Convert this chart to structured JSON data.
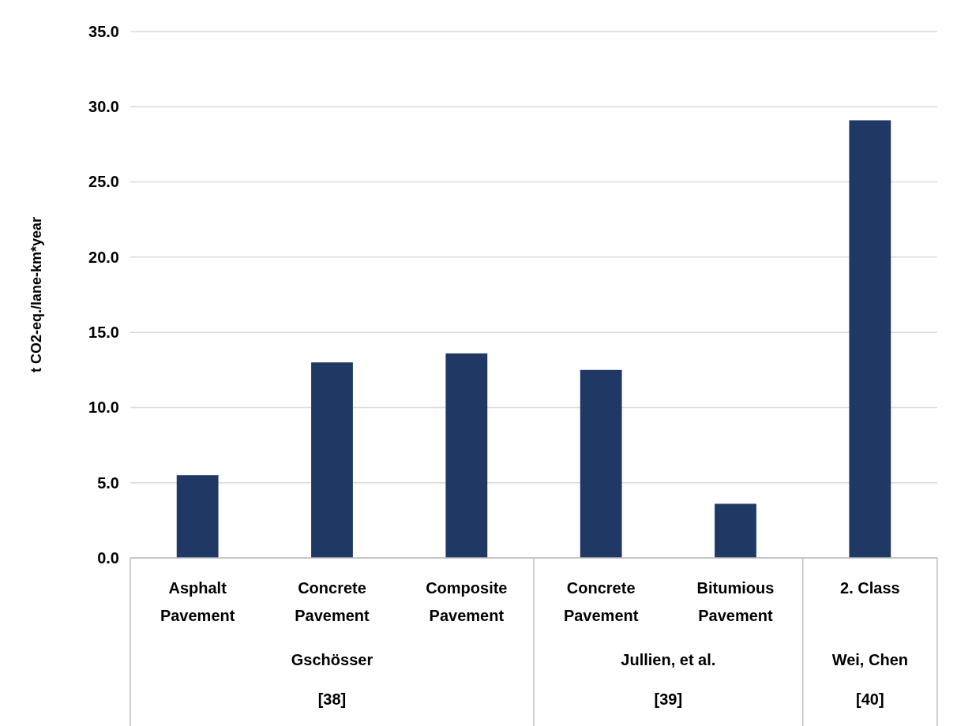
{
  "chart_data": {
    "type": "bar",
    "ylabel": "t CO2-eq./lane-km*year",
    "categories": [
      "Asphalt Pavement",
      "Concrete Pavement",
      "Composite Pavement",
      "Concrete Pavement",
      "Bitumious Pavement",
      "2. Class"
    ],
    "values": [
      5.5,
      13.0,
      13.6,
      12.5,
      3.6,
      29.1
    ],
    "color": "#203864",
    "ylim": [
      0,
      35
    ],
    "yticks": [
      {
        "value": 0,
        "label": "0.0"
      },
      {
        "value": 5,
        "label": "5.0"
      },
      {
        "value": 10,
        "label": "10.0"
      },
      {
        "value": 15,
        "label": "15.0"
      },
      {
        "value": 20,
        "label": "20.0"
      },
      {
        "value": 25,
        "label": "25.0"
      },
      {
        "value": 30,
        "label": "30.0"
      },
      {
        "value": 35,
        "label": "35.0"
      }
    ],
    "grid": "y",
    "annotations": [
      "Gschösser",
      "Jullien, et al.",
      "Wei, Chen",
      "[38]",
      "[39]",
      "[40]"
    ]
  }
}
